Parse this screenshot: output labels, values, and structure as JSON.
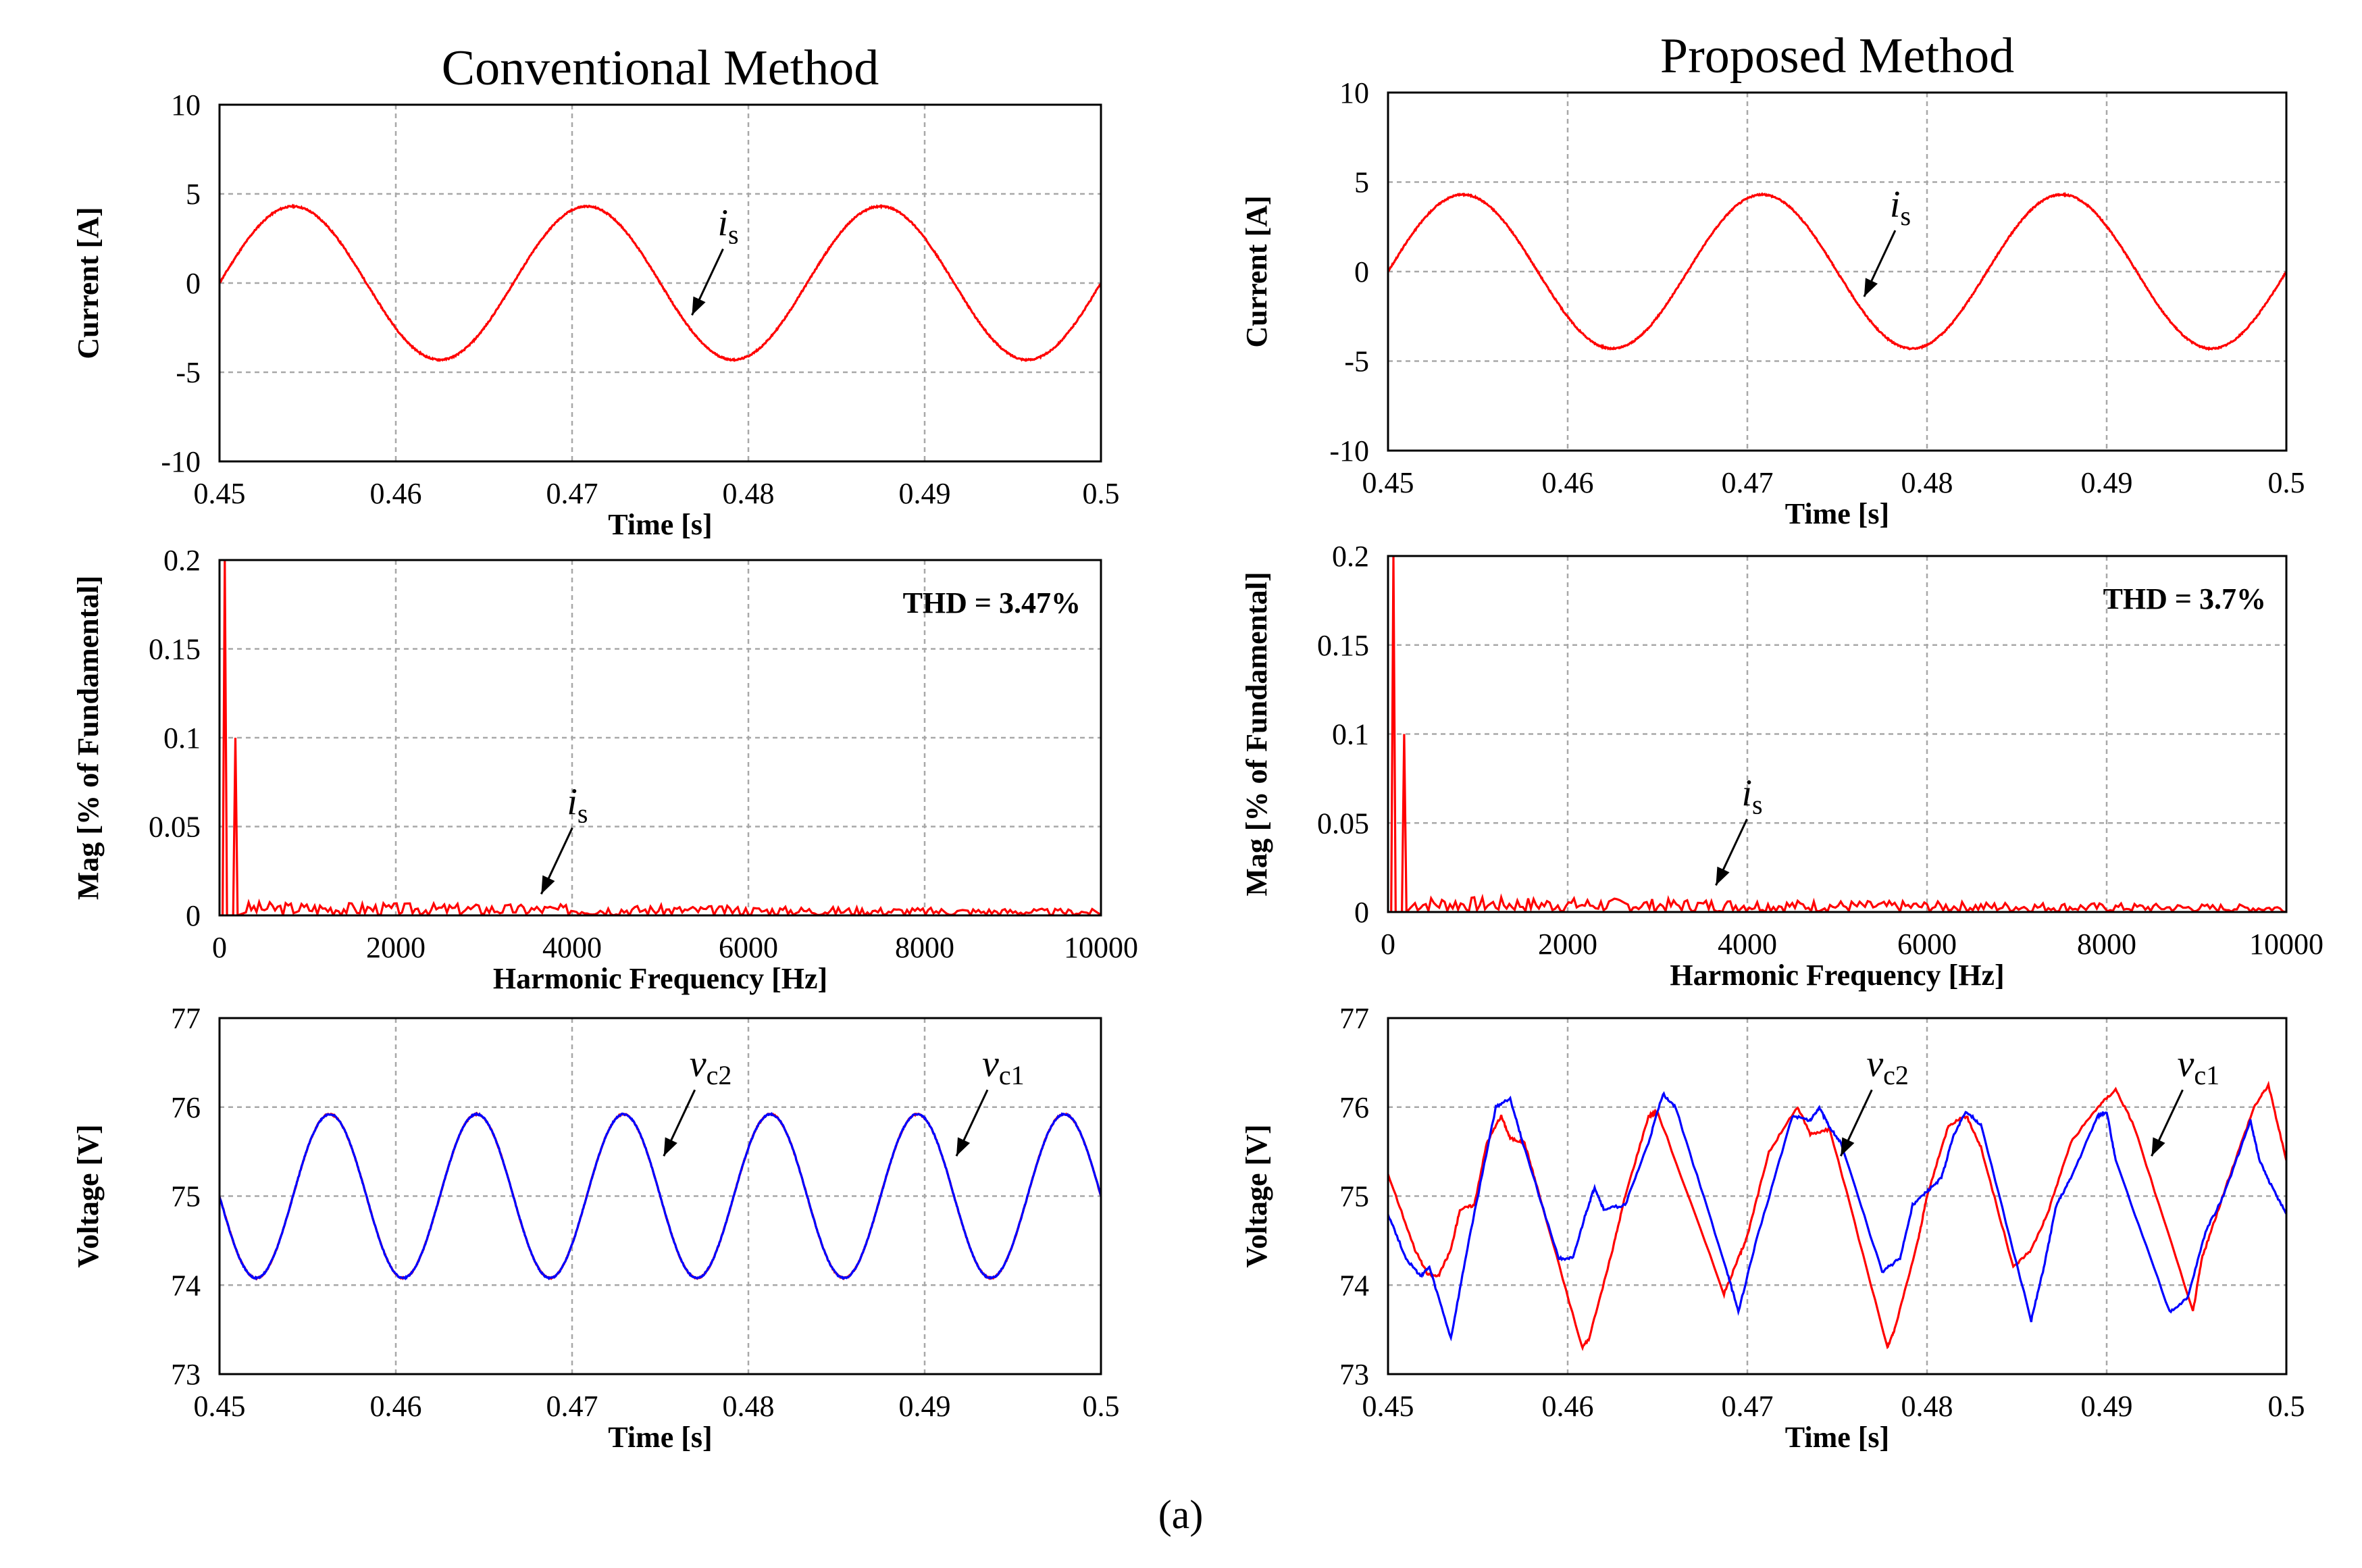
{
  "figure_label": "(a)",
  "colors": {
    "red": "#ff0000",
    "blue": "#0000ff",
    "grid": "#a8a8a8",
    "frame": "#000000"
  },
  "chart_data": [
    {
      "id": "conv_current",
      "column": "Conventional Method",
      "type": "line",
      "title": "Conventional Method",
      "xlabel": "Time [s]",
      "ylabel": "Current [A]",
      "xlim": [
        0.45,
        0.5
      ],
      "ylim": [
        -10,
        10
      ],
      "xticks": [
        0.45,
        0.46,
        0.47,
        0.48,
        0.49,
        0.5
      ],
      "xtick_labels": [
        "0.45",
        "0.46",
        "0.47",
        "0.48",
        "0.49",
        "0.5"
      ],
      "yticks": [
        10,
        5,
        0,
        -5,
        -10
      ],
      "ytick_labels": [
        "10",
        "5",
        "0",
        "-5",
        "-10"
      ],
      "series": [
        {
          "name": "is",
          "color": "#ff0000",
          "kind": "sine",
          "amplitude": 4.3,
          "frequency_hz": 60,
          "phase_deg": 0,
          "offset": 0
        }
      ],
      "annotations": [
        {
          "var": "i",
          "sub": "s",
          "x": 0.4768,
          "y": -1.8
        }
      ]
    },
    {
      "id": "conv_fft",
      "column": "Conventional Method",
      "type": "line",
      "xlabel": "Harmonic Frequency [Hz]",
      "ylabel": "Mag [% of Fundamental]",
      "xlim": [
        0,
        10000
      ],
      "ylim": [
        0,
        0.2
      ],
      "xticks": [
        0,
        2000,
        4000,
        6000,
        8000,
        10000
      ],
      "xtick_labels": [
        "0",
        "2000",
        "4000",
        "6000",
        "8000",
        "10000"
      ],
      "yticks": [
        0.2,
        0.15,
        0.1,
        0.05,
        0
      ],
      "ytick_labels": [
        "0.2",
        "0.15",
        "0.1",
        "0.05",
        "0"
      ],
      "thd": "THD = 3.47%",
      "series": [
        {
          "name": "is",
          "color": "#ff0000",
          "kind": "spectrum",
          "fundamental_hz": 60,
          "peaks": [
            [
              60,
              0.2
            ],
            [
              180,
              0.1
            ]
          ],
          "noise_floor": 0.008,
          "seed": 3
        }
      ],
      "annotations": [
        {
          "var": "i",
          "sub": "s",
          "x": 3650,
          "y": 0.012
        }
      ]
    },
    {
      "id": "conv_voltage",
      "column": "Conventional Method",
      "type": "line",
      "xlabel": "Time [s]",
      "ylabel": "Voltage [V]",
      "xlim": [
        0.45,
        0.5
      ],
      "ylim": [
        73,
        77
      ],
      "xticks": [
        0.45,
        0.46,
        0.47,
        0.48,
        0.49,
        0.5
      ],
      "xtick_labels": [
        "0.45",
        "0.46",
        "0.47",
        "0.48",
        "0.49",
        "0.5"
      ],
      "yticks": [
        77,
        76,
        75,
        74,
        73
      ],
      "ytick_labels": [
        "77",
        "76",
        "75",
        "74",
        "73"
      ],
      "series": [
        {
          "name": "vc1",
          "color": "#ff0000",
          "kind": "sine",
          "amplitude": 0.92,
          "frequency_hz": 120,
          "phase_deg": 180,
          "offset": 75
        },
        {
          "name": "vc2",
          "color": "#0000ff",
          "kind": "sine",
          "amplitude": 0.92,
          "frequency_hz": 120,
          "phase_deg": 180,
          "offset": 75
        }
      ],
      "annotations": [
        {
          "var": "v",
          "sub": "c2",
          "x": 0.4752,
          "y": 75.45
        },
        {
          "var": "v",
          "sub": "c1",
          "x": 0.4918,
          "y": 75.45
        }
      ]
    },
    {
      "id": "prop_current",
      "column": "Proposed Method",
      "type": "line",
      "title": "Proposed Method",
      "xlabel": "Time [s]",
      "ylabel": "Current [A]",
      "xlim": [
        0.45,
        0.5
      ],
      "ylim": [
        -10,
        10
      ],
      "xticks": [
        0.45,
        0.46,
        0.47,
        0.48,
        0.49,
        0.5
      ],
      "xtick_labels": [
        "0.45",
        "0.46",
        "0.47",
        "0.48",
        "0.49",
        "0.5"
      ],
      "yticks": [
        10,
        5,
        0,
        -5,
        -10
      ],
      "ytick_labels": [
        "10",
        "5",
        "0",
        "-5",
        "-10"
      ],
      "series": [
        {
          "name": "is",
          "color": "#ff0000",
          "kind": "sine",
          "amplitude": 4.3,
          "frequency_hz": 60,
          "phase_deg": 0,
          "offset": 0
        }
      ],
      "annotations": [
        {
          "var": "i",
          "sub": "s",
          "x": 0.4765,
          "y": -1.4
        }
      ]
    },
    {
      "id": "prop_fft",
      "column": "Proposed Method",
      "type": "line",
      "xlabel": "Harmonic Frequency [Hz]",
      "ylabel": "Mag [% of Fundamental]",
      "xlim": [
        0,
        10000
      ],
      "ylim": [
        0,
        0.2
      ],
      "xticks": [
        0,
        2000,
        4000,
        6000,
        8000,
        10000
      ],
      "xtick_labels": [
        "0",
        "2000",
        "4000",
        "6000",
        "8000",
        "10000"
      ],
      "yticks": [
        0.2,
        0.15,
        0.1,
        0.05,
        0
      ],
      "ytick_labels": [
        "0.2",
        "0.15",
        "0.1",
        "0.05",
        "0"
      ],
      "thd": "THD = 3.7%",
      "series": [
        {
          "name": "is",
          "color": "#ff0000",
          "kind": "spectrum",
          "fundamental_hz": 60,
          "peaks": [
            [
              60,
              0.2
            ],
            [
              180,
              0.1
            ]
          ],
          "noise_floor": 0.009,
          "seed": 7
        }
      ],
      "annotations": [
        {
          "var": "i",
          "sub": "s",
          "x": 3650,
          "y": 0.015
        }
      ]
    },
    {
      "id": "prop_voltage",
      "column": "Proposed Method",
      "type": "line",
      "xlabel": "Time [s]",
      "ylabel": "Voltage [V]",
      "xlim": [
        0.45,
        0.5
      ],
      "ylim": [
        73,
        77
      ],
      "xticks": [
        0.45,
        0.46,
        0.47,
        0.48,
        0.49,
        0.5
      ],
      "xtick_labels": [
        "0.45",
        "0.46",
        "0.47",
        "0.48",
        "0.49",
        "0.5"
      ],
      "yticks": [
        77,
        76,
        75,
        74,
        73
      ],
      "ytick_labels": [
        "77",
        "76",
        "75",
        "74",
        "73"
      ],
      "series": [
        {
          "name": "vc1",
          "color": "#ff0000",
          "kind": "points",
          "points": [
            [
              0.45,
              75.25
            ],
            [
              0.4515,
              74.4
            ],
            [
              0.4522,
              74.12
            ],
            [
              0.4528,
              74.1
            ],
            [
              0.4535,
              74.4
            ],
            [
              0.454,
              74.85
            ],
            [
              0.4548,
              74.9
            ],
            [
              0.4555,
              75.6
            ],
            [
              0.4563,
              75.9
            ],
            [
              0.4568,
              75.65
            ],
            [
              0.4576,
              75.6
            ],
            [
              0.4583,
              75.1
            ],
            [
              0.4608,
              73.3
            ],
            [
              0.4612,
              73.4
            ],
            [
              0.4625,
              74.4
            ],
            [
              0.4632,
              75.0
            ],
            [
              0.4645,
              75.9
            ],
            [
              0.465,
              75.95
            ],
            [
              0.4687,
              73.9
            ],
            [
              0.4695,
              74.3
            ],
            [
              0.47,
              74.55
            ],
            [
              0.4712,
              75.5
            ],
            [
              0.4728,
              76.0
            ],
            [
              0.4735,
              75.7
            ],
            [
              0.4746,
              75.75
            ],
            [
              0.4778,
              73.3
            ],
            [
              0.4782,
              73.5
            ],
            [
              0.4795,
              74.5
            ],
            [
              0.48,
              75.0
            ],
            [
              0.4812,
              75.8
            ],
            [
              0.4822,
              75.9
            ],
            [
              0.483,
              75.55
            ],
            [
              0.4848,
              74.2
            ],
            [
              0.4858,
              74.4
            ],
            [
              0.4867,
              74.8
            ],
            [
              0.488,
              75.6
            ],
            [
              0.4895,
              76.0
            ],
            [
              0.4905,
              76.2
            ],
            [
              0.4915,
              75.8
            ],
            [
              0.4948,
              73.7
            ],
            [
              0.4953,
              74.3
            ],
            [
              0.4958,
              74.6
            ],
            [
              0.4968,
              75.2
            ],
            [
              0.4982,
              76.0
            ],
            [
              0.499,
              76.25
            ],
            [
              0.5,
              75.4
            ]
          ]
        },
        {
          "name": "vc2",
          "color": "#0000ff",
          "kind": "points",
          "points": [
            [
              0.45,
              74.8
            ],
            [
              0.451,
              74.3
            ],
            [
              0.4518,
              74.1
            ],
            [
              0.4523,
              74.2
            ],
            [
              0.4535,
              73.4
            ],
            [
              0.4545,
              74.5
            ],
            [
              0.456,
              76.0
            ],
            [
              0.4568,
              76.1
            ],
            [
              0.4575,
              75.6
            ],
            [
              0.4595,
              74.3
            ],
            [
              0.4603,
              74.3
            ],
            [
              0.461,
              74.8
            ],
            [
              0.4615,
              75.1
            ],
            [
              0.462,
              74.85
            ],
            [
              0.4632,
              74.9
            ],
            [
              0.4645,
              75.6
            ],
            [
              0.4653,
              76.15
            ],
            [
              0.466,
              76.0
            ],
            [
              0.4688,
              74.2
            ],
            [
              0.4695,
              73.7
            ],
            [
              0.4705,
              74.5
            ],
            [
              0.4725,
              75.9
            ],
            [
              0.4735,
              75.85
            ],
            [
              0.474,
              76.0
            ],
            [
              0.4745,
              75.8
            ],
            [
              0.4752,
              75.6
            ],
            [
              0.4775,
              74.15
            ],
            [
              0.4785,
              74.3
            ],
            [
              0.4792,
              74.9
            ],
            [
              0.48,
              75.05
            ],
            [
              0.4808,
              75.2
            ],
            [
              0.4815,
              75.7
            ],
            [
              0.4822,
              75.95
            ],
            [
              0.483,
              75.8
            ],
            [
              0.4858,
              73.6
            ],
            [
              0.4865,
              74.2
            ],
            [
              0.4872,
              74.9
            ],
            [
              0.488,
              75.2
            ],
            [
              0.4895,
              75.9
            ],
            [
              0.49,
              75.95
            ],
            [
              0.4905,
              75.4
            ],
            [
              0.4935,
              73.7
            ],
            [
              0.4945,
              73.85
            ],
            [
              0.4955,
              74.6
            ],
            [
              0.4965,
              75.0
            ],
            [
              0.498,
              75.85
            ],
            [
              0.4985,
              75.4
            ],
            [
              0.4992,
              75.1
            ],
            [
              0.5,
              74.8
            ]
          ]
        }
      ],
      "annotations": [
        {
          "var": "v",
          "sub": "c2",
          "x": 0.4752,
          "y": 75.45
        },
        {
          "var": "v",
          "sub": "c1",
          "x": 0.4925,
          "y": 75.45
        }
      ]
    }
  ]
}
